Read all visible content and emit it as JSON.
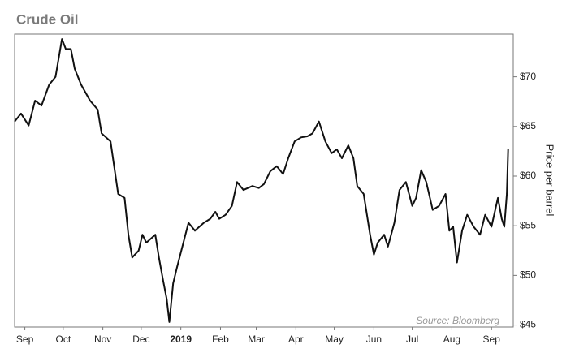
{
  "chart_data": {
    "type": "line",
    "title": "Crude Oil",
    "ylabel": "Price per barrel",
    "annotation": "Source: Bloomberg",
    "color": "#111111",
    "x": [
      -8,
      -3,
      3,
      8,
      13,
      19,
      24,
      29,
      32,
      36,
      39,
      44,
      51,
      57,
      60,
      67,
      73,
      78,
      81,
      84,
      89,
      92,
      95,
      102,
      105,
      108,
      111,
      113,
      116,
      119,
      124,
      128,
      133,
      140,
      145,
      149,
      152,
      157,
      162,
      166,
      171,
      178,
      183,
      187,
      192,
      197,
      202,
      206,
      211,
      216,
      221,
      225,
      230,
      235,
      240,
      244,
      248,
      253,
      257,
      260,
      265,
      270,
      273,
      276,
      281,
      284,
      289,
      293,
      298,
      303,
      306,
      310,
      314,
      319,
      324,
      329,
      332,
      335,
      338,
      342,
      346,
      351,
      356,
      360,
      365,
      370,
      373,
      375,
      377,
      378
    ],
    "values": [
      65.5,
      66.3,
      65.1,
      67.6,
      67.1,
      69.2,
      70.0,
      73.8,
      72.8,
      72.8,
      70.8,
      69.2,
      67.6,
      66.7,
      64.3,
      63.5,
      58.2,
      57.8,
      54.1,
      51.8,
      52.5,
      54.1,
      53.3,
      54.1,
      51.7,
      49.6,
      47.6,
      45.3,
      49.2,
      50.8,
      53.3,
      55.3,
      54.5,
      55.3,
      55.7,
      56.4,
      55.7,
      56.1,
      57.0,
      59.4,
      58.6,
      59.0,
      58.8,
      59.2,
      60.5,
      61.0,
      60.2,
      61.8,
      63.5,
      63.9,
      64.0,
      64.3,
      65.5,
      63.5,
      62.3,
      62.7,
      61.8,
      63.1,
      61.8,
      59.0,
      58.2,
      54.1,
      52.1,
      53.3,
      54.1,
      52.9,
      55.3,
      58.6,
      59.4,
      57.0,
      57.8,
      60.6,
      59.4,
      56.6,
      57.0,
      58.2,
      54.5,
      54.9,
      51.3,
      54.5,
      56.1,
      54.9,
      54.1,
      56.1,
      54.9,
      57.8,
      55.7,
      54.9,
      58.2,
      62.7
    ],
    "xlim": [
      -8,
      382
    ],
    "xticks": [
      {
        "value": 0,
        "label": "Sep"
      },
      {
        "value": 30,
        "label": "Oct"
      },
      {
        "value": 61,
        "label": "Nov"
      },
      {
        "value": 91,
        "label": "Dec"
      },
      {
        "value": 122,
        "label": "2019"
      },
      {
        "value": 153,
        "label": "Feb"
      },
      {
        "value": 181,
        "label": "Mar"
      },
      {
        "value": 212,
        "label": "Apr"
      },
      {
        "value": 242,
        "label": "May"
      },
      {
        "value": 273,
        "label": "Jun"
      },
      {
        "value": 303,
        "label": "Jul"
      },
      {
        "value": 334,
        "label": "Aug"
      },
      {
        "value": 365,
        "label": "Sep"
      }
    ],
    "ylim": [
      44.8,
      74.3
    ],
    "yticks": [
      {
        "value": 45,
        "label": "$45"
      },
      {
        "value": 50,
        "label": "$50"
      },
      {
        "value": 55,
        "label": "$55"
      },
      {
        "value": 60,
        "label": "$60"
      },
      {
        "value": 65,
        "label": "$65"
      },
      {
        "value": 70,
        "label": "$70"
      }
    ],
    "grid": false
  }
}
